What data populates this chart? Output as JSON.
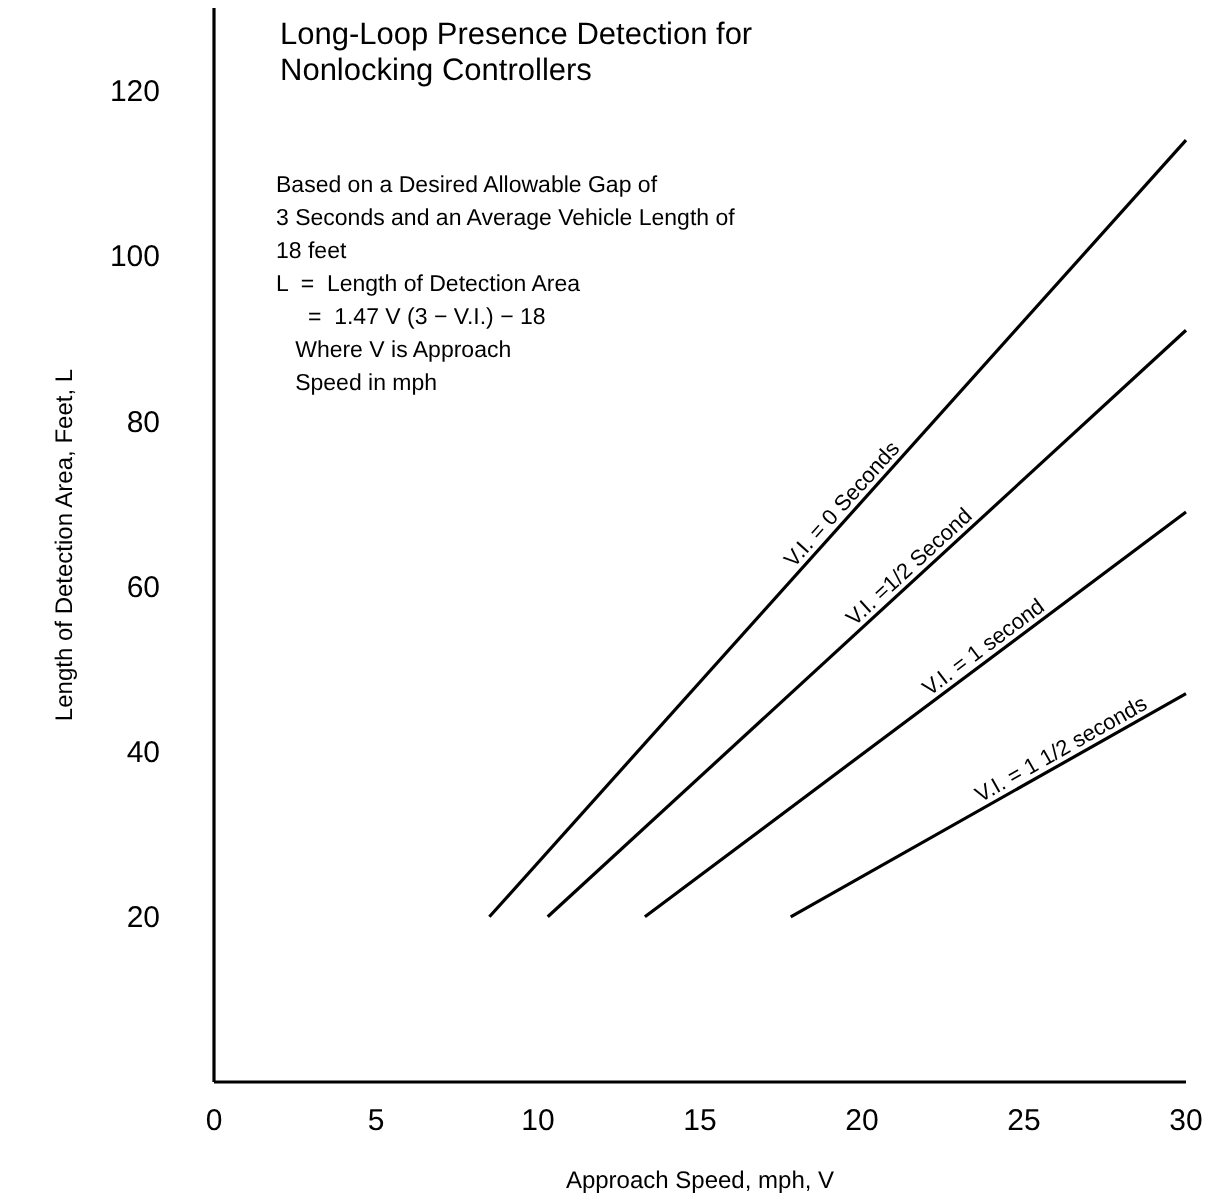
{
  "chart_data": {
    "type": "line",
    "title": "Long-Loop Presence Detection for\nNonlocking Controllers",
    "xlabel": "Approach Speed, mph, V",
    "ylabel": "Length of Detection Area, Feet, L",
    "annotations": [
      "Based on a Desired Allowable Gap of\n3 Seconds and an Average Vehicle Length of\n18 feet\nL  =  Length of Detection Area\n     =  1.47 V (3 − V.I.) − 18\n   Where V is Approach\n   Speed in mph"
    ],
    "xlim": [
      0,
      30
    ],
    "xticks": [
      0,
      5,
      10,
      15,
      20,
      25,
      30
    ],
    "ylim": [
      0,
      130
    ],
    "yticks": [
      20,
      40,
      60,
      80,
      100,
      120
    ],
    "grid": false,
    "marker": "none",
    "line_style": "solid",
    "series": [
      {
        "name": "V.I. = 0 Seconds",
        "color": "#000000",
        "x": [
          8.5,
          30
        ],
        "values": [
          20,
          114
        ]
      },
      {
        "name": "V.I. =1/2 Second",
        "color": "#000000",
        "x": [
          10.3,
          30
        ],
        "values": [
          20,
          91
        ]
      },
      {
        "name": "V.I. = 1 second",
        "color": "#000000",
        "x": [
          13.3,
          30
        ],
        "values": [
          20,
          69
        ]
      },
      {
        "name": "V.I. = 1 1/2 seconds",
        "color": "#000000",
        "x": [
          17.8,
          30
        ],
        "values": [
          20,
          47
        ]
      }
    ]
  }
}
